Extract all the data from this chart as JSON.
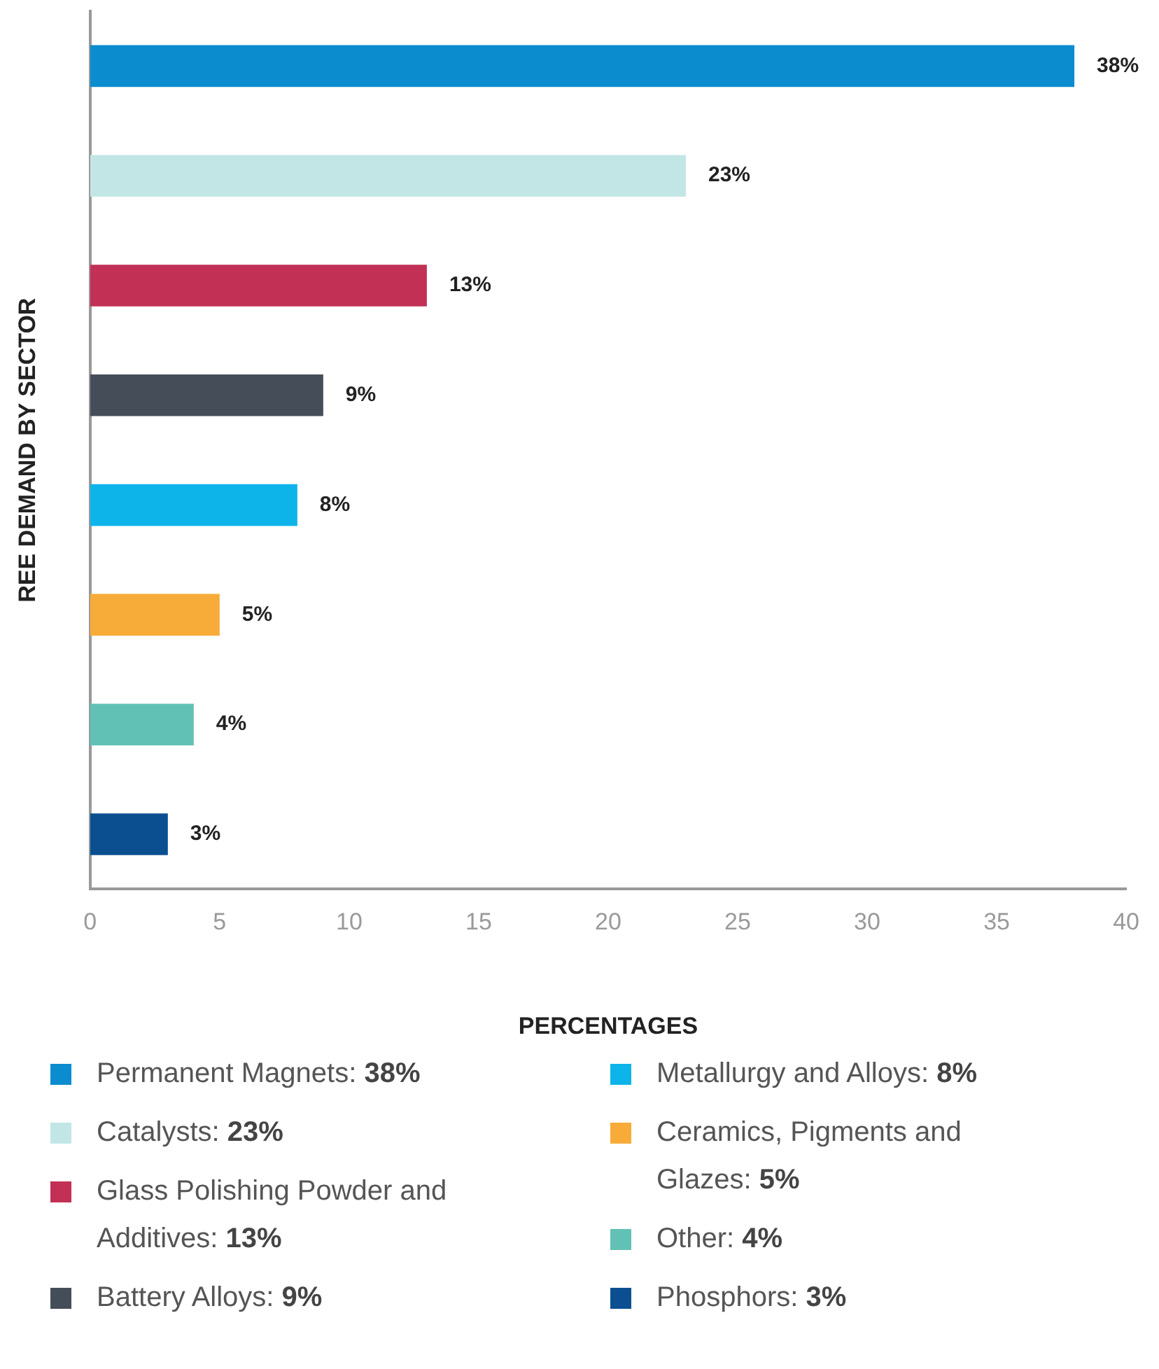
{
  "chart_data": {
    "type": "bar",
    "orientation": "horizontal",
    "xlabel": "PERCENTAGES",
    "ylabel": "REE DEMAND BY SECTOR",
    "categories": [
      null,
      null,
      null,
      null,
      null,
      null,
      null,
      null
    ],
    "series": [
      {
        "name": "Permanent Magnets: 38%",
        "color": "#0a8ccf",
        "values": [
          38,
          null,
          null,
          null,
          null,
          null,
          null,
          null
        ],
        "value_labels": [
          "38%",
          null,
          null,
          null,
          null,
          null,
          null,
          null
        ]
      },
      {
        "name": "Catalysts: 23%",
        "color": "#c2e6e6",
        "values": [
          null,
          23,
          null,
          null,
          null,
          null,
          null,
          null
        ],
        "value_labels": [
          null,
          "23%",
          null,
          null,
          null,
          null,
          null,
          null
        ]
      },
      {
        "name": "Glass Polishing Powder and Additives: 13%",
        "color": "#c23055",
        "values": [
          null,
          null,
          13,
          null,
          null,
          null,
          null,
          null
        ],
        "value_labels": [
          null,
          null,
          "13%",
          null,
          null,
          null,
          null,
          null
        ]
      },
      {
        "name": "Battery Alloys: 9%",
        "color": "#454e58",
        "values": [
          null,
          null,
          null,
          9,
          null,
          null,
          null,
          null
        ],
        "value_labels": [
          null,
          null,
          null,
          "9%",
          null,
          null,
          null,
          null
        ]
      },
      {
        "name": "Metallurgy and Alloys: 8%",
        "color": "#0db4ea",
        "values": [
          null,
          null,
          null,
          null,
          8,
          null,
          null,
          null
        ],
        "value_labels": [
          null,
          null,
          null,
          null,
          "8%",
          null,
          null,
          null
        ]
      },
      {
        "name": "Ceramics, Pigments and Glazes: 5%",
        "color": "#f7ab38",
        "values": [
          null,
          null,
          null,
          null,
          null,
          5,
          null,
          null
        ],
        "value_labels": [
          null,
          null,
          null,
          null,
          null,
          "5%",
          null,
          null
        ]
      },
      {
        "name": "Other: 4%",
        "color": "#62c1b5",
        "values": [
          null,
          null,
          null,
          null,
          null,
          null,
          4,
          null
        ],
        "value_labels": [
          null,
          null,
          null,
          null,
          null,
          null,
          "4%",
          null
        ]
      },
      {
        "name": "Phosphors: 3%",
        "color": "#0b4f91",
        "values": [
          null,
          null,
          null,
          null,
          null,
          null,
          null,
          3
        ],
        "value_labels": [
          null,
          null,
          null,
          null,
          null,
          null,
          null,
          "3%"
        ]
      }
    ],
    "xlim": [
      0,
      40
    ],
    "xticks": [
      0,
      5,
      10,
      15,
      20,
      25,
      30,
      35,
      40
    ],
    "tick_labels": "x",
    "grid": false,
    "legend": "bottom"
  }
}
